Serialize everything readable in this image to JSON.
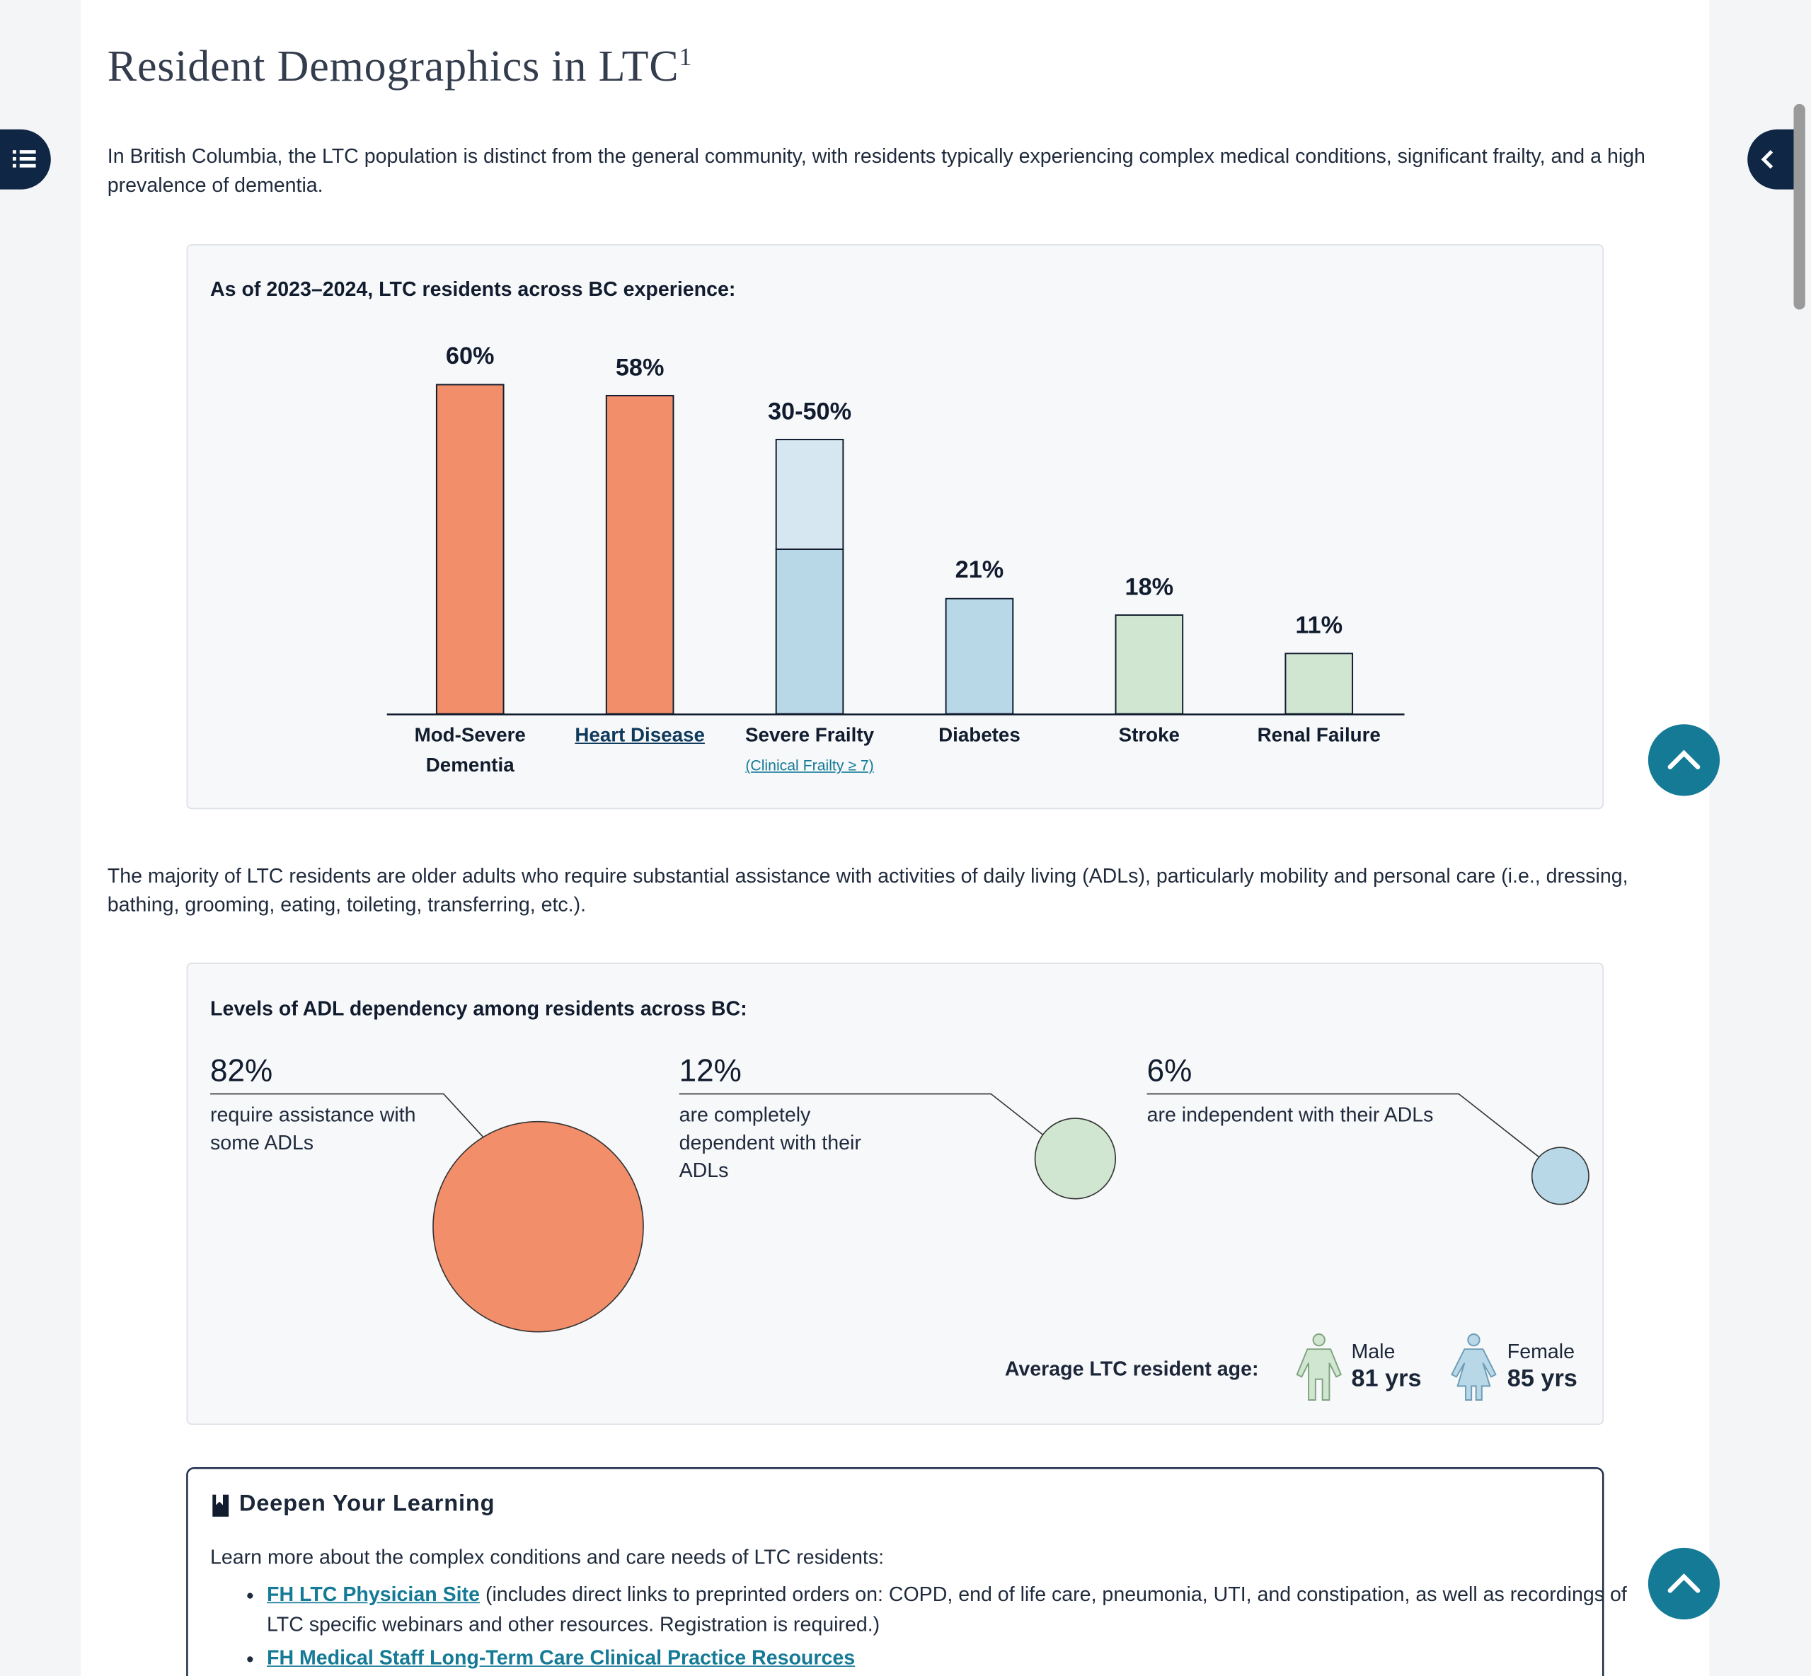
{
  "header": {
    "title": "Resident Demographics in LTC",
    "title_footnote": "1"
  },
  "intro": "In British Columbia, the LTC population is distinct from the general community, with residents typically experiencing complex medical conditions, significant frailty, and a high prevalence of dementia.",
  "chart_data": {
    "type": "bar",
    "title": "As of 2023–2024, LTC residents across BC experience:",
    "categories": [
      "Mod-Severe Dementia",
      "Heart Disease",
      "Severe Frailty",
      "Diabetes",
      "Stroke",
      "Renal Failure"
    ],
    "category_note": "(Clinical Frailty ≥ 7)",
    "series": [
      {
        "values": [
          60,
          58,
          30,
          21,
          18,
          11
        ],
        "colors": [
          "#f28e6a",
          "#f28e6a",
          "#b8d8e8",
          "#b8d8e8",
          "#d1e6d0",
          "#d1e6d0"
        ]
      },
      {
        "values": [
          null,
          null,
          20,
          null,
          null,
          null
        ],
        "color": "#d6e7f1"
      }
    ],
    "value_labels": [
      "60%",
      "58%",
      "30-50%",
      "21%",
      "18%",
      "11%"
    ],
    "ylim": [
      0,
      60
    ]
  },
  "paragraph_2": "The majority of LTC residents are older adults who require substantial assistance with activities of daily living (ADLs), particularly mobility and personal care (i.e., dressing, bathing, grooming, eating, toileting, transferring, etc.).",
  "adl": {
    "title": "Levels of ADL dependency among residents across BC:",
    "values": [
      82,
      12,
      6
    ],
    "value_labels": [
      "82%",
      "12%",
      "6%"
    ],
    "descriptions": [
      "require assistance with some ADLs",
      "are completely dependent with their ADLs",
      "are independent with their ADLs"
    ],
    "colors": [
      "#f28e6a",
      "#d1e6d0",
      "#b8d8e8"
    ]
  },
  "age": {
    "label": "Average LTC resident age:",
    "groups": [
      {
        "name": "Male",
        "value_label": "81 yrs"
      },
      {
        "name": "Female",
        "value_label": "85 yrs"
      }
    ]
  },
  "learning": {
    "title": "Deepen Your Learning",
    "intro": "Learn more about the complex conditions and care needs of LTC residents:",
    "items": [
      {
        "link": "FH LTC Physician Site",
        "text": "(includes direct links to preprinted orders on: COPD, end of life care, pneumonia, UTI, and constipation, as well as recordings of LTC specific webinars and other resources. Registration is required.)"
      },
      {
        "link": "FH Medical Staff Long-Term Care Clinical Practice Resources"
      }
    ]
  }
}
